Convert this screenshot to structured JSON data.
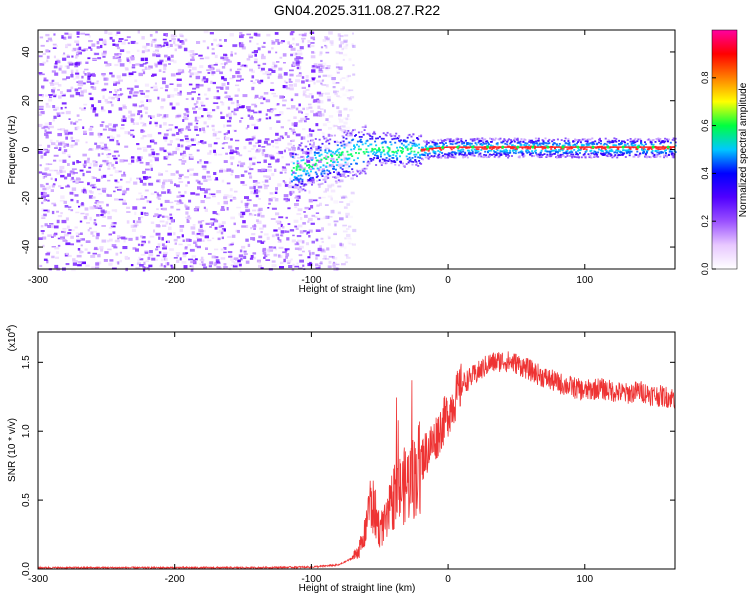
{
  "title": "GN04.2025.311.08.27.R22",
  "chart_data": [
    {
      "type": "heatmap",
      "title": "GN04.2025.311.08.27.R22",
      "xlabel": "Height of straight line (km)",
      "ylabel": "Frequency (Hz)",
      "xlim": [
        -300,
        166
      ],
      "ylim": [
        -49,
        49
      ],
      "xticks": [
        -300,
        -200,
        -100,
        0,
        100
      ],
      "yticks": [
        -40,
        -20,
        0,
        20,
        40
      ],
      "noise_region_x": [
        -300,
        -78
      ],
      "signal_line": {
        "x": [
          -115,
          -90,
          -70,
          -55,
          -40,
          -20,
          0,
          50,
          100,
          166
        ],
        "frequency": [
          -8,
          -4,
          -1,
          1,
          0,
          0,
          1,
          1,
          1,
          1
        ]
      },
      "colorbar": {
        "label": "Normalized spectral amplitude",
        "range": [
          0,
          1
        ],
        "ticks": [
          0.0,
          0.2,
          0.4,
          0.6,
          0.8
        ],
        "tick_labels": [
          "0.0",
          "0.2",
          "0.4",
          "0.6",
          "0.8"
        ],
        "colors": [
          "#ffffff",
          "#e8c8ff",
          "#9a50ff",
          "#5000ff",
          "#0000ff",
          "#00c8ff",
          "#00ff40",
          "#ffff00",
          "#ff8000",
          "#ff0000",
          "#ff00a0"
        ]
      }
    },
    {
      "type": "line",
      "xlabel": "Height of straight line (km)",
      "ylabel": "SNR (10 * v/v)",
      "y_multiplier": "(x10",
      "y_multiplier_exp": "4",
      "y_multiplier_close": ")",
      "xlim": [
        -300,
        166
      ],
      "ylim": [
        0,
        1.72
      ],
      "xticks": [
        -300,
        -200,
        -100,
        0,
        100
      ],
      "yticks": [
        0.0,
        0.5,
        1.0,
        1.5
      ],
      "ytick_labels": [
        "0.0",
        "0.5",
        "1.0",
        "1.5"
      ],
      "color": "#ee3333",
      "series": [
        {
          "x": [
            -300,
            -260,
            -220,
            -180,
            -140,
            -100,
            -80,
            -70,
            -62,
            -58,
            -54,
            -50,
            -45,
            -40,
            -35,
            -30,
            -25,
            -20,
            -15,
            -10,
            -5,
            0,
            10,
            20,
            30,
            40,
            50,
            60,
            70,
            80,
            90,
            100,
            110,
            120,
            130,
            140,
            150,
            166
          ],
          "values": [
            0.01,
            0.01,
            0.01,
            0.01,
            0.01,
            0.015,
            0.03,
            0.08,
            0.2,
            0.5,
            0.45,
            0.3,
            0.35,
            0.55,
            0.6,
            0.65,
            0.7,
            0.8,
            0.88,
            0.95,
            1.05,
            1.15,
            1.35,
            1.42,
            1.5,
            1.52,
            1.5,
            1.45,
            1.4,
            1.36,
            1.33,
            1.3,
            1.32,
            1.3,
            1.28,
            1.3,
            1.27,
            1.25
          ]
        }
      ]
    }
  ]
}
